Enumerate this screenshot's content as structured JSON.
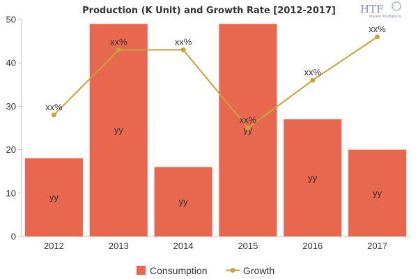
{
  "chart_data": {
    "type": "bar",
    "title": "Production (K Unit) and Growth Rate [2012-2017]",
    "categories": [
      "2012",
      "2013",
      "2014",
      "2015",
      "2016",
      "2017"
    ],
    "ylim": [
      0,
      50
    ],
    "yticks": [
      "0",
      "10",
      "20",
      "30",
      "40",
      "50"
    ],
    "grid": false,
    "legend_position": "bottom",
    "series": [
      {
        "name": "Consumption",
        "kind": "bar",
        "color": "#e8674f",
        "values": [
          18,
          49,
          16,
          49,
          27,
          20
        ],
        "labels": [
          "yy",
          "yy",
          "yy",
          "yy",
          "yy",
          "yy"
        ]
      },
      {
        "name": "Growth",
        "kind": "line",
        "color": "#c8a23a",
        "values": [
          28,
          43,
          43,
          25,
          36,
          46
        ],
        "labels": [
          "xx%",
          "xx%",
          "xx%",
          "xx%",
          "xx%",
          "xx%"
        ]
      }
    ]
  },
  "logo": {
    "text": "HTF",
    "subtitle": "Market Intelligence",
    "color": "#7f8fa6"
  }
}
